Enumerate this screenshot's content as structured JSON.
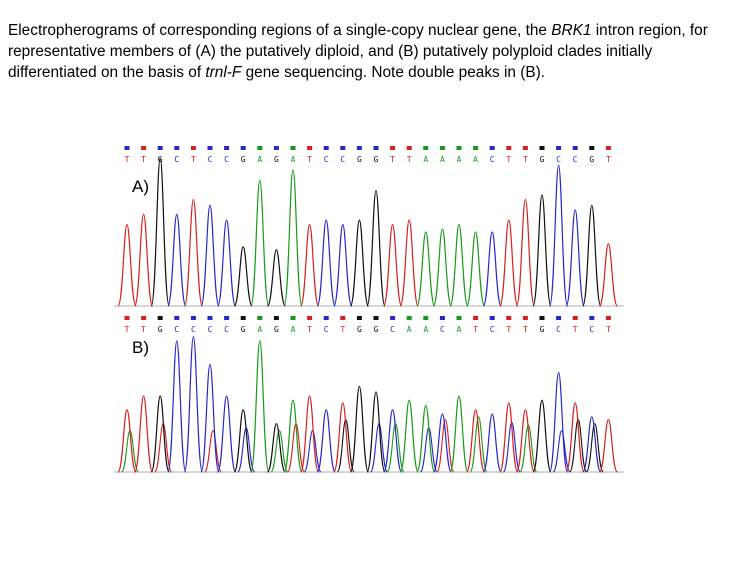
{
  "caption": {
    "part1": "Electropherograms of corresponding regions of a single-copy nuclear gene, the ",
    "gene": "BRK1",
    "part2": " intron region, for representative members of (A) the putatively diploid, and (B) putatively polyploid clades initially differentiated on the basis of ",
    "marker": "trnl-F",
    "part3": " gene sequencing. Note double peaks in (B)."
  },
  "colors": {
    "A": "#1a9a1a",
    "C": "#2828c8",
    "G": "#111111",
    "T": "#d82020"
  },
  "panels": [
    {
      "label": "A)",
      "sequence": [
        "T",
        "T",
        "G",
        "C",
        "T",
        "C",
        "C",
        "G",
        "A",
        "G",
        "A",
        "T",
        "C",
        "C",
        "G",
        "G",
        "T",
        "T",
        "A",
        "A",
        "A",
        "A",
        "C",
        "T",
        "T",
        "G",
        "C",
        "C",
        "G",
        "T"
      ],
      "quality": [
        "C",
        "T",
        "C",
        "C",
        "T",
        "C",
        "C",
        "C",
        "A",
        "C",
        "A",
        "T",
        "C",
        "C",
        "C",
        "C",
        "T",
        "T",
        "A",
        "A",
        "A",
        "A",
        "C",
        "T",
        "T",
        "G",
        "C",
        "C",
        "G",
        "T"
      ],
      "peaks": [
        0.55,
        0.62,
        1.0,
        0.62,
        0.72,
        0.68,
        0.58,
        0.4,
        0.85,
        0.38,
        0.92,
        0.55,
        0.58,
        0.55,
        0.58,
        0.78,
        0.55,
        0.58,
        0.5,
        0.52,
        0.55,
        0.5,
        0.5,
        0.58,
        0.72,
        0.75,
        0.95,
        0.65,
        0.68,
        0.42
      ]
    },
    {
      "label": "B)",
      "sequence": [
        "T",
        "T",
        "G",
        "C",
        "C",
        "C",
        "C",
        "G",
        "A",
        "G",
        "A",
        "T",
        "C",
        "T",
        "G",
        "G",
        "C",
        "A",
        "A",
        "C",
        "A",
        "T",
        "C",
        "T",
        "T",
        "G",
        "C",
        "T",
        "C",
        "T"
      ],
      "quality": [
        "T",
        "T",
        "G",
        "C",
        "C",
        "C",
        "C",
        "G",
        "A",
        "G",
        "A",
        "T",
        "C",
        "T",
        "G",
        "G",
        "C",
        "A",
        "A",
        "C",
        "A",
        "T",
        "C",
        "T",
        "T",
        "G",
        "C",
        "T",
        "C",
        "T"
      ],
      "peaks": [
        0.45,
        0.55,
        0.55,
        0.95,
        0.98,
        0.78,
        0.55,
        0.45,
        0.95,
        0.35,
        0.52,
        0.55,
        0.45,
        0.5,
        0.62,
        0.58,
        0.45,
        0.52,
        0.48,
        0.42,
        0.55,
        0.45,
        0.42,
        0.5,
        0.45,
        0.52,
        0.72,
        0.5,
        0.4,
        0.38
      ],
      "secondary": [
        0.3,
        0.0,
        0.35,
        0.0,
        0.0,
        0.3,
        0.0,
        0.32,
        0.0,
        0.3,
        0.35,
        0.3,
        0.0,
        0.38,
        0.0,
        0.35,
        0.35,
        0.0,
        0.32,
        0.38,
        0.0,
        0.4,
        0.0,
        0.36,
        0.34,
        0.0,
        0.3,
        0.38,
        0.35,
        0.0
      ],
      "secondary_bases": [
        "A",
        "C",
        "T",
        "G",
        "G",
        "T",
        "G",
        "C",
        "G",
        "A",
        "T",
        "C",
        "A",
        "G",
        "T",
        "C",
        "A",
        "G",
        "C",
        "T",
        "G",
        "A",
        "G",
        "C",
        "A",
        "T",
        "C",
        "G",
        "G",
        "C"
      ]
    }
  ]
}
